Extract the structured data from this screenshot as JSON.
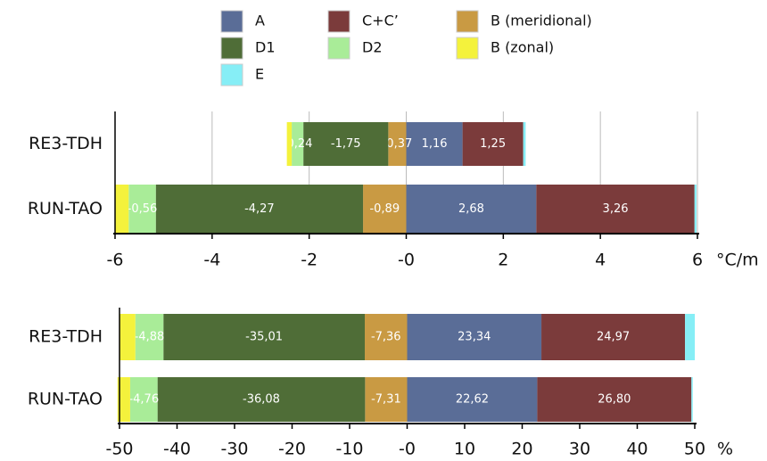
{
  "chart_data": [
    {
      "type": "bar",
      "orientation": "horizontal",
      "stacked": true,
      "x_label": "°C/m",
      "categories": [
        "RE3-TDH",
        "RUN-TAO"
      ],
      "xlim": [
        -6,
        6
      ],
      "xticks": [
        -6,
        -4,
        -2,
        {
          "value": 0,
          "label": "-0"
        },
        2,
        4,
        6
      ],
      "grid": true,
      "series": [
        {
          "name": "A",
          "color": "#5a6d97",
          "values": [
            1.16,
            2.68
          ],
          "value_labels": [
            "1,16",
            "2,68"
          ]
        },
        {
          "name": "C+C’",
          "color": "#7b3b3b",
          "values": [
            1.25,
            3.26
          ],
          "value_labels": [
            "1,25",
            "3,26"
          ]
        },
        {
          "name": "B (meridional)",
          "color": "#c99a43",
          "values": [
            -0.37,
            -0.89
          ],
          "value_labels": [
            "-0,37",
            "-0,89"
          ]
        },
        {
          "name": "D1",
          "color": "#4f6d37",
          "values": [
            -1.75,
            -4.27
          ],
          "value_labels": [
            "-1,75",
            "-4,27"
          ]
        },
        {
          "name": "D2",
          "color": "#a9ec98",
          "values": [
            -0.24,
            -0.56
          ],
          "value_labels": [
            "-0,24",
            "-0,56"
          ]
        },
        {
          "name": "B (zonal)",
          "color": "#f4f23c",
          "values": [
            -0.1,
            -0.28
          ]
        },
        {
          "name": "E",
          "color": "#86eef6",
          "values": [
            0.05,
            0.04
          ]
        }
      ]
    },
    {
      "type": "bar",
      "orientation": "horizontal",
      "stacked": true,
      "x_label": "%",
      "categories": [
        "RE3-TDH",
        "RUN-TAO"
      ],
      "xlim": [
        -50,
        50
      ],
      "xticks": [
        -50,
        -40,
        -30,
        -20,
        -10,
        {
          "value": 0,
          "label": "-0"
        },
        10,
        20,
        30,
        40,
        50
      ],
      "grid": false,
      "series": [
        {
          "values": [
            23.34,
            22.62
          ],
          "value_labels": [
            "23,34",
            "22,62"
          ]
        },
        {
          "values": [
            24.97,
            26.8
          ],
          "value_labels": [
            "24,97",
            "26,80"
          ]
        },
        {
          "values": [
            -7.36,
            -7.31
          ],
          "value_labels": [
            "-7,36",
            "-7,31"
          ]
        },
        {
          "values": [
            -35.01,
            -36.08
          ],
          "value_labels": [
            "-35,01",
            "-36,08"
          ]
        },
        {
          "values": [
            -4.88,
            -4.76
          ],
          "value_labels": [
            "-4,88",
            "-4,76"
          ]
        },
        {
          "values": [
            -2.74,
            -2.2
          ]
        },
        {
          "values": [
            1.7,
            0.23
          ]
        }
      ]
    }
  ]
}
